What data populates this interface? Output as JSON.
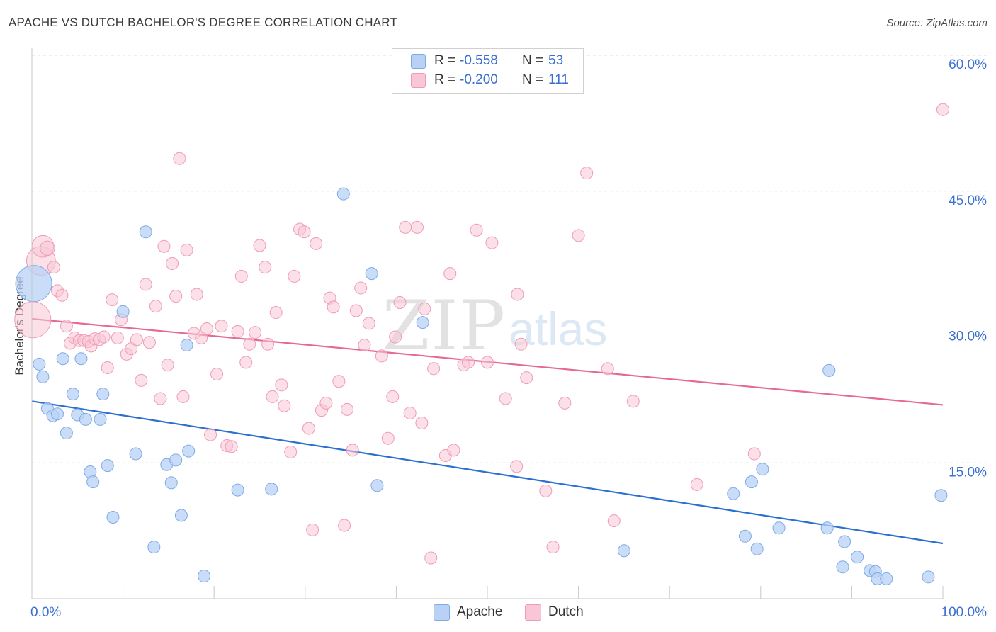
{
  "title": "APACHE VS DUTCH BACHELOR'S DEGREE CORRELATION CHART",
  "source": "Source: ZipAtlas.com",
  "watermark": {
    "zip": "ZIP",
    "atlas": "atlas"
  },
  "legend": {
    "apache": {
      "r_label": "R =",
      "r_value": "-0.558",
      "n_label": "N =",
      "n_value": "53"
    },
    "dutch": {
      "r_label": "R =",
      "r_value": "-0.200",
      "n_label": "N =",
      "n_value": "111"
    }
  },
  "bottom_legend": {
    "apache": "Apache",
    "dutch": "Dutch"
  },
  "colors": {
    "apache_fill": "#b8d1f5",
    "apache_stroke": "#7eaae6",
    "apache_line": "#2b6fd1",
    "dutch_fill": "#f8c6d6",
    "dutch_stroke": "#f09ab7",
    "dutch_line": "#e56a93",
    "tick_label": "#3b6fd0",
    "grid": "#dddddd"
  },
  "chart_data": {
    "type": "scatter",
    "title": "APACHE VS DUTCH BACHELOR'S DEGREE CORRELATION CHART",
    "xlabel": "",
    "ylabel": "Bachelor's Degree",
    "xlim": [
      0,
      100
    ],
    "ylim": [
      0,
      60
    ],
    "x_tick_labels": [
      "0.0%",
      "100.0%"
    ],
    "y_ticks": [
      15,
      30,
      45,
      60
    ],
    "y_tick_labels": [
      "15.0%",
      "30.0%",
      "45.0%",
      "60.0%"
    ],
    "grid": true,
    "legend_position": "top-center",
    "series": [
      {
        "name": "Apache",
        "trend": {
          "x": [
            0,
            100
          ],
          "y": [
            21.8,
            6.1
          ]
        },
        "points": [
          [
            0.2,
            34.8,
            3
          ],
          [
            0.8,
            25.9,
            1
          ],
          [
            1.2,
            24.5,
            1
          ],
          [
            1.7,
            21.0,
            1
          ],
          [
            2.3,
            20.2,
            1
          ],
          [
            2.8,
            20.4,
            1
          ],
          [
            3.4,
            26.5,
            1
          ],
          [
            3.8,
            18.3,
            1
          ],
          [
            4.5,
            22.6,
            1
          ],
          [
            5.0,
            20.3,
            1
          ],
          [
            5.4,
            26.5,
            1
          ],
          [
            5.9,
            19.8,
            1
          ],
          [
            6.4,
            14.0,
            1
          ],
          [
            6.7,
            12.9,
            1
          ],
          [
            7.5,
            19.8,
            1
          ],
          [
            7.8,
            22.6,
            1
          ],
          [
            8.3,
            14.7,
            1
          ],
          [
            8.9,
            9.0,
            1
          ],
          [
            10.0,
            31.7,
            1
          ],
          [
            11.4,
            16.0,
            1
          ],
          [
            12.5,
            40.5,
            1
          ],
          [
            13.4,
            5.7,
            1
          ],
          [
            14.8,
            14.8,
            1
          ],
          [
            15.3,
            12.8,
            1
          ],
          [
            15.8,
            15.3,
            1
          ],
          [
            16.4,
            9.2,
            1
          ],
          [
            17.0,
            28.0,
            1
          ],
          [
            17.2,
            16.3,
            1
          ],
          [
            18.9,
            2.5,
            1
          ],
          [
            22.6,
            12.0,
            1
          ],
          [
            26.3,
            12.1,
            1
          ],
          [
            34.2,
            44.7,
            1
          ],
          [
            37.3,
            35.9,
            1
          ],
          [
            37.9,
            12.5,
            1
          ],
          [
            42.9,
            30.5,
            1
          ],
          [
            65.0,
            5.3,
            1
          ],
          [
            77.0,
            11.6,
            1
          ],
          [
            78.3,
            6.9,
            1
          ],
          [
            79.0,
            12.9,
            1
          ],
          [
            79.6,
            5.5,
            1
          ],
          [
            80.2,
            14.3,
            1
          ],
          [
            82.0,
            7.8,
            1
          ],
          [
            87.3,
            7.8,
            1
          ],
          [
            87.5,
            25.2,
            1
          ],
          [
            89.0,
            3.5,
            1
          ],
          [
            89.2,
            6.3,
            1
          ],
          [
            90.6,
            4.6,
            1
          ],
          [
            92.0,
            3.1,
            1
          ],
          [
            92.6,
            3.0,
            1
          ],
          [
            92.8,
            2.2,
            1
          ],
          [
            93.8,
            2.2,
            1
          ],
          [
            98.4,
            2.4,
            1
          ],
          [
            99.8,
            11.4,
            1
          ]
        ]
      },
      {
        "name": "Dutch",
        "trend": {
          "x": [
            0,
            100
          ],
          "y": [
            30.9,
            21.4
          ]
        },
        "points": [
          [
            0.1,
            30.8,
            3
          ],
          [
            1.0,
            37.3,
            2.4
          ],
          [
            1.2,
            38.9,
            1.8
          ],
          [
            1.7,
            38.7,
            1.2
          ],
          [
            2.4,
            36.6,
            1
          ],
          [
            2.8,
            34.0,
            1
          ],
          [
            3.3,
            33.5,
            1
          ],
          [
            3.8,
            30.1,
            1
          ],
          [
            4.2,
            28.2,
            1
          ],
          [
            4.7,
            28.8,
            1
          ],
          [
            5.2,
            28.5,
            1
          ],
          [
            5.7,
            28.5,
            1
          ],
          [
            6.2,
            28.4,
            1
          ],
          [
            6.5,
            27.9,
            1
          ],
          [
            6.9,
            28.7,
            1
          ],
          [
            7.4,
            28.6,
            1
          ],
          [
            7.9,
            28.9,
            1
          ],
          [
            8.3,
            25.5,
            1
          ],
          [
            8.8,
            33.0,
            1
          ],
          [
            9.4,
            28.8,
            1
          ],
          [
            9.8,
            30.8,
            1
          ],
          [
            10.4,
            27.0,
            1
          ],
          [
            10.9,
            27.6,
            1
          ],
          [
            11.5,
            28.6,
            1
          ],
          [
            12.0,
            24.1,
            1
          ],
          [
            12.5,
            34.7,
            1
          ],
          [
            12.9,
            28.3,
            1
          ],
          [
            13.6,
            32.3,
            1
          ],
          [
            14.1,
            22.1,
            1
          ],
          [
            14.5,
            38.9,
            1
          ],
          [
            14.9,
            25.8,
            1
          ],
          [
            15.4,
            37.0,
            1
          ],
          [
            15.8,
            33.4,
            1
          ],
          [
            16.2,
            48.6,
            1
          ],
          [
            16.6,
            22.3,
            1
          ],
          [
            17.0,
            38.5,
            1
          ],
          [
            17.8,
            29.3,
            1
          ],
          [
            18.1,
            33.6,
            1
          ],
          [
            18.6,
            28.8,
            1
          ],
          [
            19.2,
            29.8,
            1
          ],
          [
            19.6,
            18.1,
            1
          ],
          [
            20.3,
            24.8,
            1
          ],
          [
            20.8,
            30.1,
            1
          ],
          [
            21.4,
            16.9,
            1
          ],
          [
            21.9,
            16.8,
            1
          ],
          [
            22.6,
            29.5,
            1
          ],
          [
            23.0,
            35.6,
            1
          ],
          [
            23.5,
            26.1,
            1
          ],
          [
            23.9,
            28.1,
            1
          ],
          [
            24.5,
            29.4,
            1
          ],
          [
            25.0,
            39.0,
            1
          ],
          [
            25.6,
            36.6,
            1
          ],
          [
            25.9,
            28.1,
            1
          ],
          [
            26.4,
            22.3,
            1
          ],
          [
            26.8,
            31.6,
            1
          ],
          [
            27.4,
            23.6,
            1
          ],
          [
            27.7,
            21.3,
            1
          ],
          [
            28.4,
            16.2,
            1
          ],
          [
            28.8,
            35.6,
            1
          ],
          [
            29.4,
            40.8,
            1
          ],
          [
            29.9,
            40.5,
            1
          ],
          [
            30.4,
            18.8,
            1
          ],
          [
            30.8,
            7.6,
            1
          ],
          [
            31.2,
            39.2,
            1
          ],
          [
            31.8,
            20.8,
            1
          ],
          [
            32.3,
            21.6,
            1
          ],
          [
            32.7,
            33.2,
            1
          ],
          [
            33.1,
            32.2,
            1
          ],
          [
            33.7,
            24.0,
            1
          ],
          [
            34.3,
            8.1,
            1
          ],
          [
            34.6,
            20.9,
            1
          ],
          [
            35.2,
            16.4,
            1
          ],
          [
            35.6,
            31.8,
            1
          ],
          [
            36.1,
            34.3,
            1
          ],
          [
            36.5,
            28.0,
            1
          ],
          [
            37.0,
            30.4,
            1
          ],
          [
            38.4,
            26.8,
            1
          ],
          [
            39.1,
            17.7,
            1
          ],
          [
            39.6,
            22.3,
            1
          ],
          [
            39.9,
            28.9,
            1
          ],
          [
            40.4,
            32.7,
            1
          ],
          [
            41.0,
            41.0,
            1
          ],
          [
            41.5,
            20.5,
            1
          ],
          [
            42.3,
            41.0,
            1
          ],
          [
            42.8,
            19.4,
            1
          ],
          [
            43.1,
            32.0,
            1
          ],
          [
            43.8,
            4.5,
            1
          ],
          [
            44.1,
            25.4,
            1
          ],
          [
            45.4,
            15.8,
            1
          ],
          [
            45.9,
            35.9,
            1
          ],
          [
            46.3,
            16.4,
            1
          ],
          [
            47.4,
            25.8,
            1
          ],
          [
            47.9,
            26.1,
            1
          ],
          [
            48.8,
            40.7,
            1
          ],
          [
            50.0,
            26.1,
            1
          ],
          [
            50.5,
            39.3,
            1
          ],
          [
            52.0,
            22.1,
            1
          ],
          [
            53.2,
            14.6,
            1
          ],
          [
            53.3,
            33.6,
            1
          ],
          [
            53.7,
            28.1,
            1
          ],
          [
            54.3,
            24.4,
            1
          ],
          [
            56.4,
            11.9,
            1
          ],
          [
            57.2,
            5.7,
            1
          ],
          [
            58.5,
            21.6,
            1
          ],
          [
            60.0,
            40.1,
            1
          ],
          [
            60.9,
            47.0,
            1
          ],
          [
            63.2,
            25.4,
            1
          ],
          [
            63.9,
            8.6,
            1
          ],
          [
            66.0,
            21.8,
            1
          ],
          [
            73.0,
            12.6,
            1
          ],
          [
            79.3,
            16.0,
            1
          ],
          [
            100.0,
            54.0,
            1
          ]
        ]
      }
    ]
  }
}
